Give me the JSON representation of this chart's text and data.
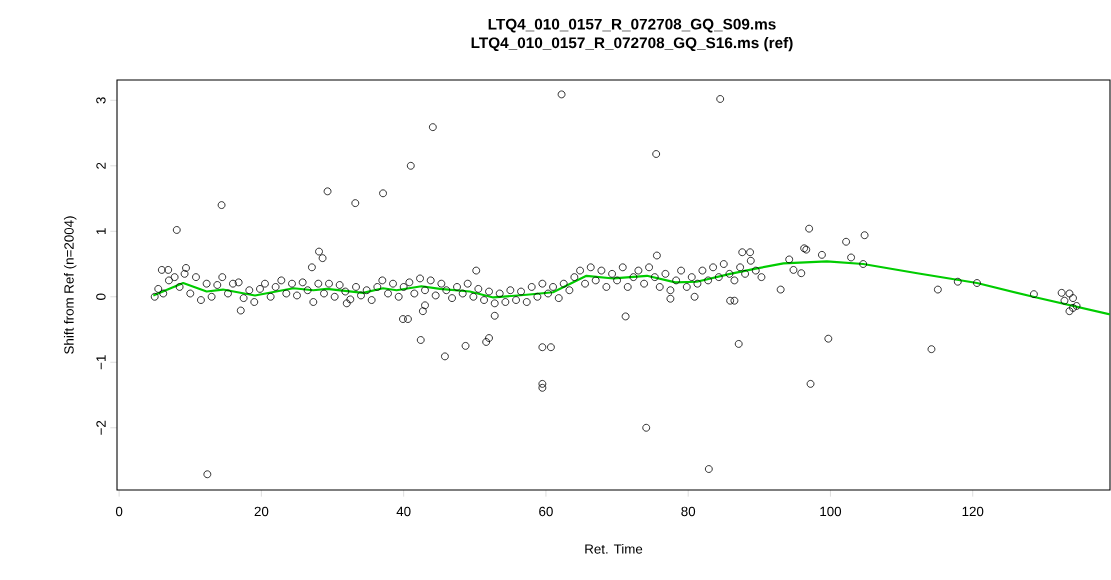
{
  "chart_data": {
    "type": "scatter",
    "title": "LTQ4_010_0157_R_072708_GQ_S09.ms",
    "subtitle": "LTQ4_010_0157_R_072708_GQ_S16.ms (ref)",
    "xlabel": "Ret. Time",
    "ylabel": "Shift from Ref (n=2004)",
    "xlim": [
      -0.3,
      139.3
    ],
    "ylim": [
      -2.95,
      3.31
    ],
    "xticks": [
      0,
      20,
      40,
      60,
      80,
      100,
      120
    ],
    "yticks": [
      {
        "value": -2,
        "label": "−2"
      },
      {
        "value": -1,
        "label": "−1"
      },
      0,
      1,
      2,
      3
    ],
    "marker": "circle",
    "series": [
      {
        "color": "#000000",
        "x": [
          44.1,
          41.0,
          29.3,
          33.2,
          37.1,
          14.4,
          8.1,
          28.1,
          28.6,
          27.1,
          12.4,
          17.1,
          39.9,
          40.6,
          42.7,
          43.0,
          42.4,
          32.0,
          6.0,
          6.9,
          9.4,
          62.2,
          84.5,
          75.5,
          45.8,
          48.7,
          51.6,
          52.0,
          52.8,
          50.2,
          59.5,
          60.7,
          59.5,
          59.5,
          74.1,
          82.9,
          71.2,
          87.1,
          85.9,
          86.5,
          77.5,
          80.9,
          75.6,
          87.6,
          88.7,
          97.0,
          102.2,
          104.8,
          102.9,
          104.6,
          98.8,
          96.3,
          96.6,
          93.0,
          94.8,
          95.9,
          94.2,
          97.2,
          99.7,
          114.2,
          115.1,
          117.9,
          120.6,
          128.6,
          132.5,
          133.6,
          134.1,
          132.9,
          134.6,
          133.6,
          134.1,
          5,
          5.5,
          6.2,
          7,
          7.8,
          8.5,
          9.2,
          10,
          10.8,
          11.5,
          12.3,
          13,
          13.8,
          14.5,
          15.3,
          16,
          16.8,
          17.5,
          18.3,
          19,
          19.8,
          20.5,
          21.3,
          22,
          22.8,
          23.5,
          24.3,
          25,
          25.8,
          26.5,
          27.3,
          28,
          28.8,
          29.5,
          30.3,
          31,
          31.8,
          32.5,
          33.3,
          34,
          34.8,
          35.5,
          36.3,
          37,
          37.8,
          38.5,
          39.3,
          40,
          40.8,
          41.5,
          42.3,
          43,
          43.8,
          44.5,
          45.3,
          46,
          46.8,
          47.5,
          48.3,
          49,
          49.8,
          50.5,
          51.3,
          52,
          52.8,
          53.5,
          54.3,
          55,
          55.8,
          56.5,
          57.3,
          58,
          58.8,
          59.5,
          60.3,
          61,
          61.8,
          62.5,
          63.3,
          64,
          64.8,
          65.5,
          66.3,
          67,
          67.8,
          68.5,
          69.3,
          70,
          70.8,
          71.5,
          72.3,
          73,
          73.8,
          74.5,
          75.3,
          76,
          76.8,
          77.5,
          78.3,
          79,
          79.8,
          80.5,
          81.3,
          82,
          82.8,
          83.5,
          84.3,
          85,
          85.8,
          86.5,
          87.3,
          88,
          88.8,
          89.5,
          90.3
        ],
        "values": [
          2.59,
          2.0,
          1.61,
          1.43,
          1.58,
          1.4,
          1.02,
          0.69,
          0.59,
          0.45,
          -2.71,
          -0.21,
          -0.34,
          -0.34,
          -0.22,
          -0.13,
          -0.66,
          -0.1,
          0.41,
          0.41,
          0.44,
          3.09,
          3.02,
          2.18,
          -0.91,
          -0.75,
          -0.69,
          -0.63,
          -0.29,
          0.4,
          -0.77,
          -0.77,
          -1.33,
          -1.39,
          -2.0,
          -2.63,
          -0.3,
          -0.72,
          -0.06,
          -0.06,
          -0.03,
          0.0,
          0.63,
          0.68,
          0.68,
          1.04,
          0.84,
          0.94,
          0.6,
          0.5,
          0.64,
          0.74,
          0.72,
          0.11,
          0.41,
          0.36,
          0.57,
          -1.33,
          -0.64,
          -0.8,
          0.11,
          0.23,
          0.21,
          0.04,
          0.06,
          0.05,
          -0.02,
          -0.06,
          -0.14,
          -0.22,
          -0.17,
          0.0,
          0.12,
          0.05,
          0.25,
          0.3,
          0.15,
          0.35,
          0.05,
          0.3,
          -0.05,
          0.2,
          0.0,
          0.18,
          0.3,
          0.05,
          0.2,
          0.22,
          -0.02,
          0.1,
          -0.08,
          0.12,
          0.2,
          0.0,
          0.15,
          0.25,
          0.05,
          0.2,
          0.02,
          0.22,
          0.1,
          -0.08,
          0.2,
          0.05,
          0.2,
          0.0,
          0.18,
          0.08,
          -0.04,
          0.15,
          0.02,
          0.1,
          -0.05,
          0.15,
          0.25,
          0.05,
          0.2,
          0.0,
          0.15,
          0.22,
          0.05,
          0.28,
          0.1,
          0.25,
          0.02,
          0.2,
          0.1,
          -0.02,
          0.15,
          0.05,
          0.2,
          0.0,
          0.12,
          -0.05,
          0.08,
          -0.1,
          0.05,
          -0.08,
          0.1,
          -0.05,
          0.08,
          -0.08,
          0.15,
          0.0,
          0.2,
          0.05,
          0.15,
          -0.02,
          0.2,
          0.1,
          0.3,
          0.4,
          0.2,
          0.45,
          0.25,
          0.4,
          0.15,
          0.35,
          0.25,
          0.45,
          0.15,
          0.3,
          0.4,
          0.2,
          0.45,
          0.3,
          0.15,
          0.35,
          0.1,
          0.25,
          0.4,
          0.15,
          0.3,
          0.2,
          0.4,
          0.25,
          0.45,
          0.3,
          0.5,
          0.35,
          0.25,
          0.45,
          0.35,
          0.55,
          0.4,
          0.3
        ]
      },
      {
        "type": "line",
        "color": "#00cc00",
        "marker": "none",
        "x": [
          4.8,
          9.0,
          12.3,
          14.6,
          19.1,
          24.5,
          27.3,
          29.2,
          34.3,
          37.1,
          39.0,
          42.5,
          45.1,
          49.3,
          52.6,
          57.3,
          61.0,
          65.7,
          69.5,
          74.2,
          78.2,
          81.2,
          85.9,
          89.5,
          93.4,
          99.5,
          104.6,
          112.2,
          120.6,
          128.5,
          139.3
        ],
        "values": [
          0.02,
          0.21,
          0.08,
          0.11,
          0.02,
          0.13,
          0.1,
          0.12,
          0.06,
          0.13,
          0.1,
          0.16,
          0.12,
          0.08,
          -0.01,
          0.03,
          0.07,
          0.32,
          0.28,
          0.32,
          0.22,
          0.23,
          0.35,
          0.43,
          0.51,
          0.54,
          0.5,
          0.36,
          0.21,
          0.0,
          -0.27
        ]
      }
    ]
  }
}
